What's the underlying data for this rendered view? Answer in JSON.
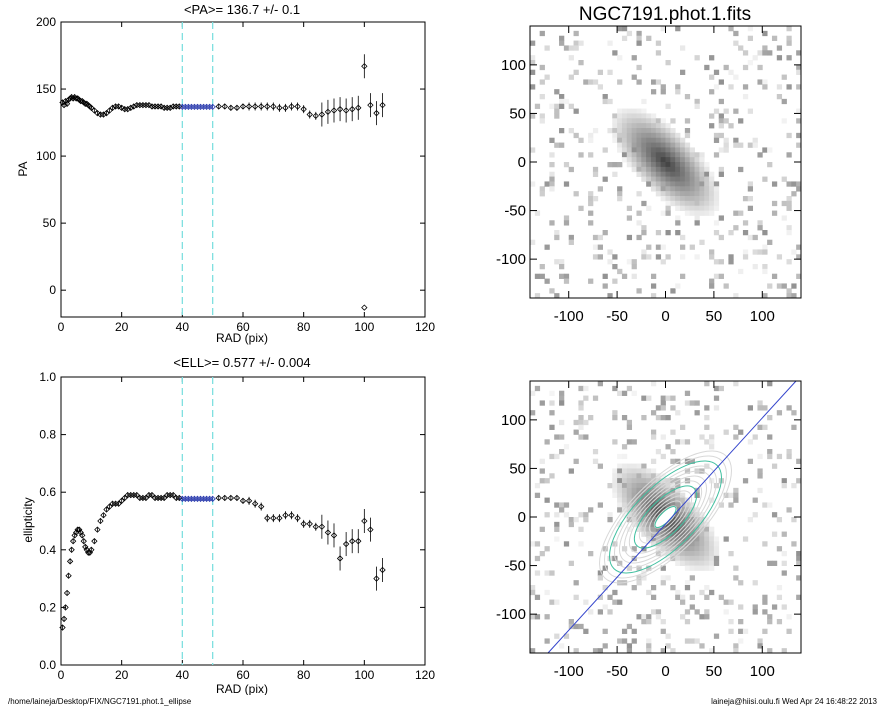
{
  "footer": {
    "path": "/home/laineja/Desktop/FIX/NGC7191.phot.1_ellipse",
    "user_time": "laineja@hiisi.oulu.fi  Wed Apr 24 16:48:22 2013"
  },
  "colors": {
    "cut_line": "#7fe0e0",
    "fit_points": "#2233aa",
    "fit_line": "#3344cc",
    "contour": "#d8d8d8",
    "contour_accent": "#40c0a0"
  },
  "chart_data": [
    {
      "type": "scatter",
      "title": "<PA>= 136.7 +/-   0.1",
      "xlabel": "RAD (pix)",
      "ylabel": "PA",
      "xlim": [
        0,
        120
      ],
      "ylim": [
        -20,
        200
      ],
      "xticks": [
        "0",
        "20",
        "40",
        "60",
        "80",
        "100",
        "120"
      ],
      "yticks": [
        "0",
        "50",
        "100",
        "150",
        "200"
      ],
      "vertical_cuts": [
        40,
        50
      ],
      "x": [
        0.5,
        1,
        1.5,
        2,
        2.5,
        3,
        3.5,
        4,
        4.5,
        5,
        5.5,
        6,
        6.5,
        7,
        7.5,
        8,
        8.5,
        9,
        9.5,
        10,
        11,
        12,
        13,
        14,
        15,
        16,
        17,
        18,
        19,
        20,
        21,
        22,
        23,
        24,
        25,
        26,
        27,
        28,
        29,
        30,
        31,
        32,
        33,
        34,
        35,
        36,
        37,
        38,
        39,
        40,
        41,
        42,
        43,
        44,
        45,
        46,
        47,
        48,
        49,
        50,
        52,
        54,
        56,
        58,
        60,
        62,
        64,
        66,
        68,
        70,
        72,
        74,
        76,
        78,
        80,
        82,
        84,
        86,
        88,
        90,
        92,
        94,
        96,
        98,
        100,
        102,
        104,
        106
      ],
      "y": [
        140,
        138,
        141,
        139,
        142,
        143,
        144,
        143,
        144,
        143,
        143,
        142,
        141,
        141,
        140,
        139,
        139,
        138,
        137,
        136,
        134,
        132,
        131,
        131,
        132,
        134,
        136,
        137,
        137,
        136,
        135,
        135,
        136,
        137,
        138,
        138,
        138,
        138,
        138,
        137,
        137,
        137,
        137,
        136,
        136,
        136,
        137,
        137,
        137,
        136.7,
        136.7,
        136.7,
        136.7,
        136.7,
        136.7,
        136.7,
        136.7,
        136.7,
        136.7,
        136.7,
        137,
        137,
        136,
        136,
        137,
        137,
        137,
        137,
        137,
        137,
        136,
        136,
        137,
        137,
        135,
        131,
        130,
        131,
        133,
        134,
        135,
        134,
        135,
        136,
        167,
        138,
        132,
        138
      ],
      "outliers": [
        {
          "x": 100,
          "y": -13
        }
      ]
    },
    {
      "type": "scatter",
      "title": "<ELL>= 0.577 +/-  0.004",
      "xlabel": "RAD (pix)",
      "ylabel": "ellipticity",
      "xlim": [
        0,
        120
      ],
      "ylim": [
        0,
        1
      ],
      "xticks": [
        "0",
        "20",
        "40",
        "60",
        "80",
        "100",
        "120"
      ],
      "yticks": [
        "0.0",
        "0.2",
        "0.4",
        "0.6",
        "0.8",
        "1.0"
      ],
      "vertical_cuts": [
        40,
        50
      ],
      "x": [
        0.5,
        1,
        1.5,
        2,
        2.5,
        3,
        3.5,
        4,
        4.5,
        5,
        5.5,
        6,
        6.5,
        7,
        7.5,
        8,
        8.5,
        9,
        9.5,
        10,
        11,
        12,
        13,
        14,
        15,
        16,
        17,
        18,
        19,
        20,
        21,
        22,
        23,
        24,
        25,
        26,
        27,
        28,
        29,
        30,
        31,
        32,
        33,
        34,
        35,
        36,
        37,
        38,
        39,
        40,
        41,
        42,
        43,
        44,
        45,
        46,
        47,
        48,
        49,
        50,
        52,
        54,
        56,
        58,
        60,
        62,
        64,
        66,
        68,
        70,
        72,
        74,
        76,
        78,
        80,
        82,
        84,
        86,
        88,
        90,
        92,
        94,
        96,
        98,
        100,
        102,
        104,
        106
      ],
      "y": [
        0.13,
        0.16,
        0.2,
        0.25,
        0.31,
        0.36,
        0.4,
        0.43,
        0.45,
        0.46,
        0.47,
        0.47,
        0.46,
        0.45,
        0.43,
        0.41,
        0.4,
        0.39,
        0.39,
        0.4,
        0.43,
        0.47,
        0.5,
        0.52,
        0.54,
        0.55,
        0.56,
        0.56,
        0.56,
        0.57,
        0.58,
        0.59,
        0.59,
        0.59,
        0.59,
        0.58,
        0.58,
        0.58,
        0.59,
        0.59,
        0.58,
        0.58,
        0.58,
        0.58,
        0.59,
        0.59,
        0.59,
        0.58,
        0.58,
        0.577,
        0.577,
        0.577,
        0.577,
        0.577,
        0.577,
        0.577,
        0.577,
        0.577,
        0.577,
        0.577,
        0.58,
        0.58,
        0.58,
        0.58,
        0.57,
        0.57,
        0.56,
        0.55,
        0.51,
        0.51,
        0.51,
        0.52,
        0.52,
        0.51,
        0.49,
        0.49,
        0.48,
        0.48,
        0.46,
        0.45,
        0.37,
        0.42,
        0.43,
        0.43,
        0.5,
        0.47,
        0.3,
        0.33
      ]
    },
    {
      "type": "heatmap",
      "title": "NGC7191.phot.1.fits",
      "xlim": [
        -140,
        140
      ],
      "ylim": [
        -140,
        140
      ],
      "xticks": [
        "-100",
        "-50",
        "0",
        "50",
        "100"
      ],
      "yticks": [
        "-100",
        "-50",
        "0",
        "50",
        "100"
      ],
      "galaxy": {
        "pa_deg": 136.7,
        "ellipticity": 0.577
      }
    },
    {
      "type": "heatmap",
      "title": "",
      "xlim": [
        -140,
        140
      ],
      "ylim": [
        -140,
        140
      ],
      "xticks": [
        "-100",
        "-50",
        "0",
        "50",
        "100"
      ],
      "yticks": [
        "-100",
        "-50",
        "0",
        "50",
        "100"
      ],
      "overlay": "isophote contours with position-angle line"
    }
  ]
}
